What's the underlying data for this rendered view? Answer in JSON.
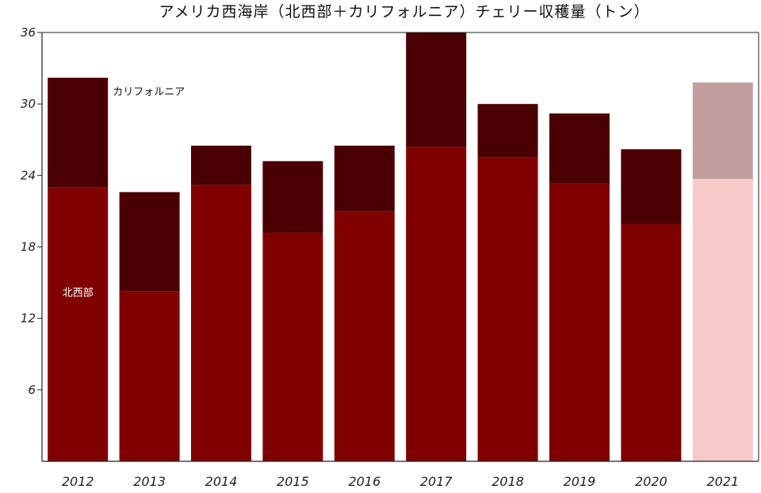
{
  "chart_data": {
    "type": "bar",
    "stacked": true,
    "title": "アメリカ西海岸（北西部＋カリフォルニア）チェリー収穫量（トン）",
    "xlabel": "",
    "ylabel": "",
    "categories": [
      "2012",
      "2013",
      "2014",
      "2015",
      "2016",
      "2017",
      "2018",
      "2019",
      "2020",
      "2021"
    ],
    "yticks": [
      6,
      12,
      18,
      24,
      30,
      36
    ],
    "ylim": [
      0,
      36
    ],
    "grid": false,
    "series": [
      {
        "name": "北西部",
        "values": [
          23.0,
          14.3,
          23.2,
          19.2,
          21.0,
          26.4,
          25.5,
          23.3,
          19.9,
          23.7
        ],
        "color": "#800000",
        "highlight_color": "#f7c9c9"
      },
      {
        "name": "カリフォルニア",
        "values": [
          9.2,
          8.3,
          3.3,
          6.0,
          5.5,
          9.6,
          4.5,
          5.9,
          6.3,
          8.1
        ],
        "color": "#4a0003",
        "highlight_color": "#c29e9e"
      }
    ],
    "highlight_category": "2021",
    "colors": {
      "axis": "#222222",
      "label_light": "#ffffff",
      "label_dark": "#111111"
    }
  }
}
